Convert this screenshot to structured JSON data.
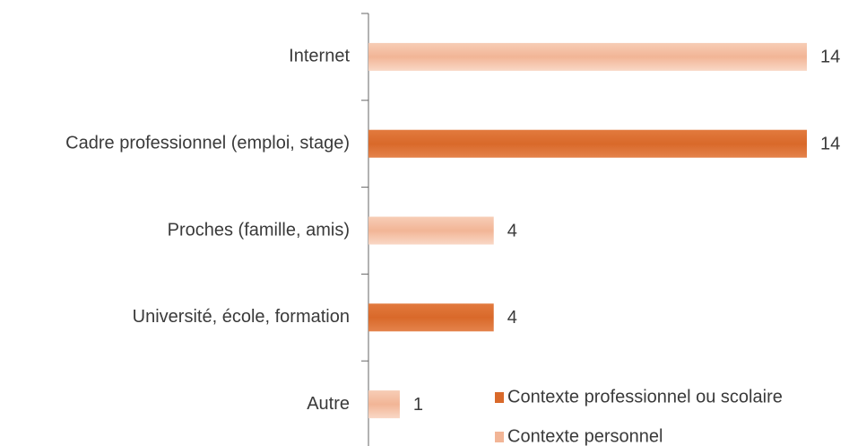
{
  "chart_data": {
    "type": "barh",
    "categories": [
      "Internet",
      "Cadre professionnel (emploi, stage)",
      "Proches (famille, amis)",
      "Université, école, formation",
      "Autre"
    ],
    "series": [
      {
        "name": "Contexte professionnel ou scolaire",
        "color": "#d9692a",
        "values": [
          null,
          14,
          null,
          4,
          null
        ]
      },
      {
        "name": "Contexte personnel",
        "color": "#f2b596",
        "values": [
          14,
          null,
          4,
          null,
          1
        ]
      }
    ],
    "xlim": [
      0,
      14
    ]
  }
}
